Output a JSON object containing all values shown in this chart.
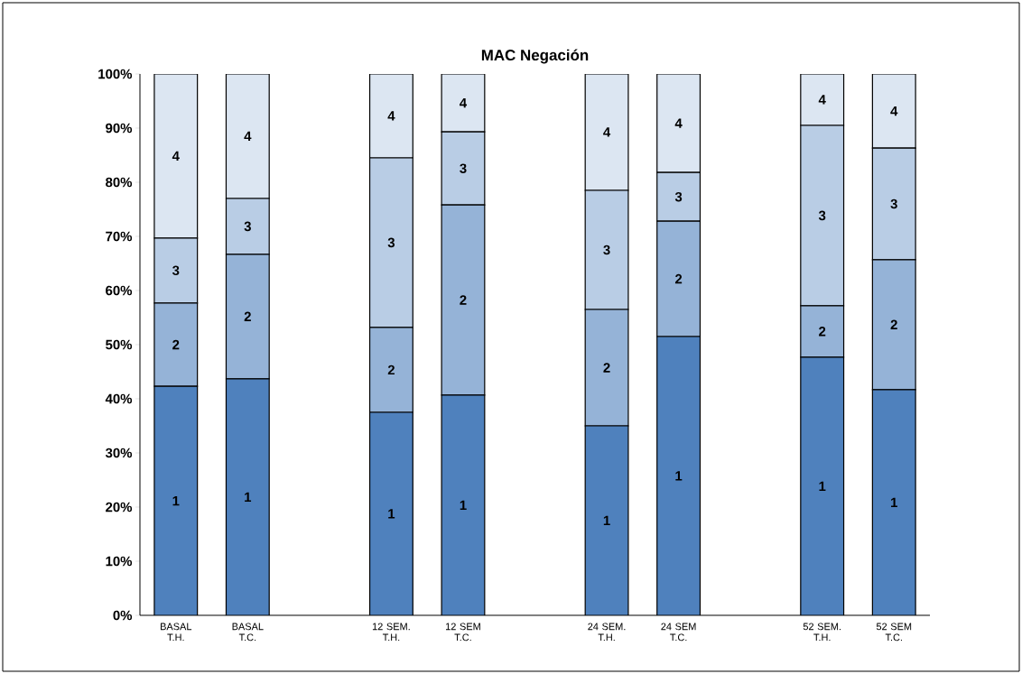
{
  "chart_data": {
    "type": "bar",
    "title": "MAC  Negación",
    "stacked": true,
    "categories": [
      "BASAL T.H.",
      "BASAL T.C.",
      null,
      "12 SEM. T.H.",
      "12 SEM T.C.",
      null,
      "24 SEM. T.H.",
      "24 SEM T.C.",
      null,
      "52 SEM. T.H.",
      "52 SEM T.C."
    ],
    "series": [
      {
        "name": "1",
        "color": "#4f81bd",
        "values": [
          42.3,
          43.7,
          null,
          37.5,
          40.7,
          null,
          35.0,
          51.5,
          null,
          47.7,
          41.7
        ]
      },
      {
        "name": "2",
        "color": "#95b3d7",
        "values": [
          15.4,
          23.0,
          null,
          15.7,
          35.1,
          null,
          21.5,
          21.3,
          null,
          9.5,
          24.0
        ]
      },
      {
        "name": "3",
        "color": "#b9cde5",
        "values": [
          12.0,
          10.3,
          null,
          31.3,
          13.5,
          null,
          22.0,
          9.0,
          null,
          33.3,
          20.6
        ]
      },
      {
        "name": "4",
        "color": "#dce6f2",
        "values": [
          30.3,
          23.0,
          null,
          15.5,
          10.7,
          null,
          21.5,
          18.2,
          null,
          9.5,
          13.7
        ]
      }
    ],
    "ylim": [
      0,
      100
    ],
    "yticks": [
      {
        "value": 0,
        "label": "0%"
      },
      {
        "value": 10,
        "label": "10%"
      },
      {
        "value": 20,
        "label": "20%"
      },
      {
        "value": 30,
        "label": "30%"
      },
      {
        "value": 40,
        "label": "40%"
      },
      {
        "value": 50,
        "label": "50%"
      },
      {
        "value": 60,
        "label": "60%"
      },
      {
        "value": 70,
        "label": "70%"
      },
      {
        "value": 80,
        "label": "80%"
      },
      {
        "value": 90,
        "label": "90%"
      },
      {
        "value": 100,
        "label": "100%"
      }
    ]
  }
}
